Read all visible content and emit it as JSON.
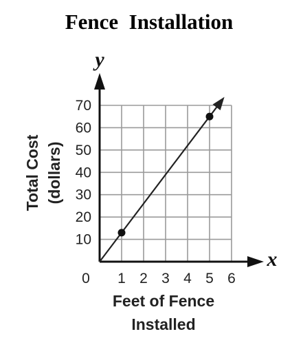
{
  "chart_data": {
    "type": "line",
    "title": "Fence  Installation",
    "xlabel_lines": [
      "Feet of Fence",
      "Installed"
    ],
    "ylabel_lines": [
      "Total Cost",
      "(dollars)"
    ],
    "x_axis_letter": "x",
    "y_axis_letter": "y",
    "origin_label": "0",
    "xlim": [
      0,
      6
    ],
    "ylim": [
      0,
      70
    ],
    "x_ticks": [
      "1",
      "2",
      "3",
      "4",
      "5",
      "6"
    ],
    "y_ticks": [
      "10",
      "20",
      "30",
      "40",
      "50",
      "60",
      "70"
    ],
    "grid": true,
    "line": {
      "x": [
        0,
        5.6
      ],
      "y": [
        0,
        72.8
      ]
    },
    "points": [
      {
        "x": 1,
        "y": 13
      },
      {
        "x": 5,
        "y": 65
      }
    ]
  }
}
